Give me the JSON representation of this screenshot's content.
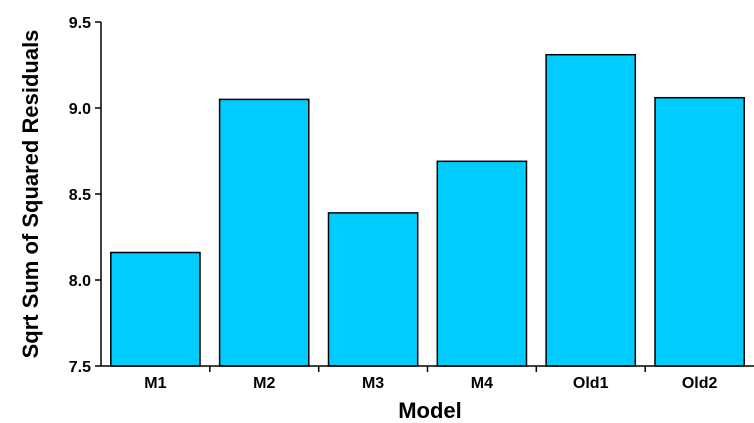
{
  "chart_data": {
    "type": "bar",
    "title": "",
    "xlabel": "Model",
    "ylabel": "Sqrt Sum of Squared Residuals",
    "categories": [
      "M1",
      "M2",
      "M3",
      "M4",
      "Old1",
      "Old2"
    ],
    "values": [
      8.16,
      9.05,
      8.39,
      8.69,
      9.31,
      9.06
    ],
    "ylim": [
      7.5,
      9.5
    ],
    "yticks": [
      "7.5",
      "8.0",
      "8.5",
      "9.0",
      "9.5"
    ],
    "grid": false,
    "legend": "none",
    "colors": {
      "bar_fill": "#00CCFF",
      "bar_stroke": "#000000",
      "axis": "#000000",
      "background": "#FFFFFF"
    }
  }
}
